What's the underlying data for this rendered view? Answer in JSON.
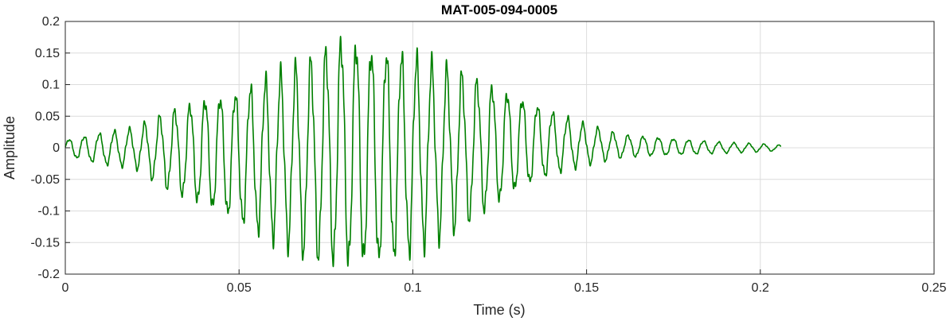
{
  "chart_data": {
    "type": "line",
    "title": "MAT-005-094-0005",
    "xlabel": "Time (s)",
    "ylabel": "Amplitude",
    "xlim": [
      0,
      0.25
    ],
    "ylim": [
      -0.2,
      0.2
    ],
    "xticks": [
      0,
      0.05,
      0.1,
      0.15,
      0.2,
      0.25
    ],
    "xtick_labels": [
      "0",
      "0.05",
      "0.1",
      "0.15",
      "0.2",
      "0.25"
    ],
    "yticks": [
      0.2,
      0.15,
      0.1,
      0.05,
      0,
      -0.05,
      -0.1,
      -0.15,
      -0.2
    ],
    "ytick_labels": [
      "0.2",
      "0.15",
      "0.1",
      "0.05",
      "0",
      "-0.05",
      "-0.1",
      "-0.15",
      "-0.2"
    ],
    "grid": true,
    "series": [
      {
        "color": "#008000",
        "x": [
          0,
          0.01,
          0.02,
          0.03,
          0.04,
          0.05,
          0.06,
          0.07,
          0.08,
          0.09,
          0.1,
          0.11,
          0.12,
          0.13,
          0.14,
          0.15,
          0.16,
          0.17,
          0.18,
          0.19,
          0.2,
          0.206
        ],
        "envelope_upper": [
          0.012,
          0.022,
          0.03,
          0.055,
          0.075,
          0.085,
          0.11,
          0.13,
          0.17,
          0.15,
          0.14,
          0.12,
          0.1,
          0.08,
          0.055,
          0.035,
          0.02,
          0.016,
          0.012,
          0.008,
          0.006,
          0.004
        ],
        "envelope_lower": [
          -0.012,
          -0.025,
          -0.03,
          -0.065,
          -0.09,
          -0.115,
          -0.14,
          -0.165,
          -0.182,
          -0.18,
          -0.16,
          -0.13,
          -0.1,
          -0.065,
          -0.04,
          -0.025,
          -0.015,
          -0.012,
          -0.01,
          -0.008,
          -0.006,
          -0.004
        ]
      }
    ]
  }
}
